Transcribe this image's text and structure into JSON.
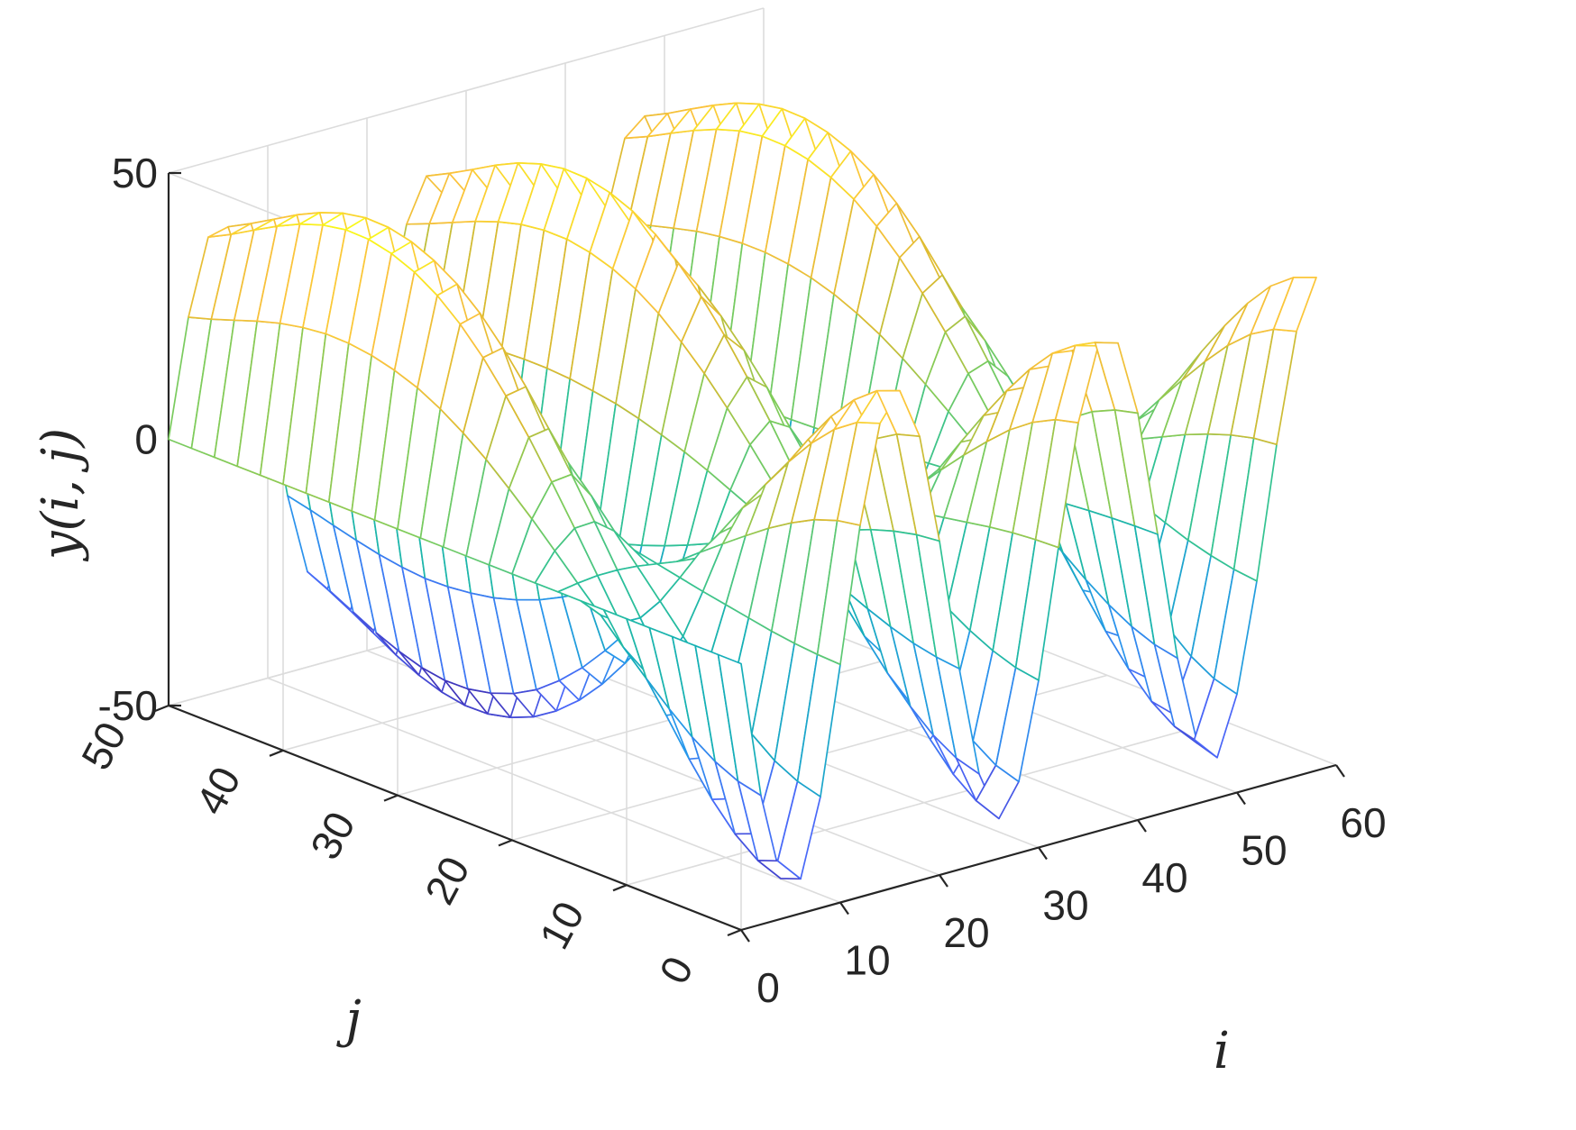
{
  "chart_data": {
    "type": "surface",
    "title": "",
    "xlabel": "i",
    "ylabel": "j",
    "zlabel": "y(i, j)",
    "xlim": [
      0,
      60
    ],
    "ylim": [
      0,
      50
    ],
    "zlim": [
      -50,
      50
    ],
    "x_ticks": [
      "0",
      "10",
      "20",
      "30",
      "40",
      "50",
      "60"
    ],
    "y_ticks": [
      "0",
      "10",
      "20",
      "30",
      "40",
      "50"
    ],
    "z_ticks": [
      "-50",
      "0",
      "50"
    ],
    "grid": true,
    "colormap": "parula",
    "colors": [
      "#3e26a8",
      "#4a67f8",
      "#2797eb",
      "#15b0b5",
      "#2fc295",
      "#81cc59",
      "#d8ba30",
      "#fbc23c",
      "#f9fb15"
    ],
    "grid_x": [
      0,
      2,
      4,
      6,
      8,
      10,
      12,
      14,
      16,
      18,
      20,
      22,
      24,
      26,
      28,
      30,
      32,
      34,
      36,
      38,
      40,
      42,
      44,
      46,
      48,
      50,
      52,
      54,
      56,
      58
    ],
    "grid_y": [
      0,
      2,
      4,
      6,
      8,
      10,
      12,
      14,
      16,
      18,
      20,
      22,
      24,
      26,
      28,
      30,
      32,
      34,
      36,
      38,
      40,
      42,
      44,
      46,
      48,
      50
    ],
    "z_values": [
      [
        0.0,
        -25.8,
        -42.4,
        -43.5,
        -29.1,
        -5.3,
        19.8,
        37.9,
        43.0,
        33.4,
        12.7,
        -12.3,
        -33.1,
        -42.5,
        -36.6,
        -18.6,
        5.3,
        27.7,
        41.1,
        40.6,
        26.4,
        2.6,
        -21.7,
        -38.7,
        -42.4,
        -31.5,
        -11.3,
        13.3,
        33.5,
        42.6
      ],
      [
        0.0,
        -24.8,
        -40.7,
        -41.8,
        -27.9,
        -5.1,
        19.0,
        36.4,
        41.3,
        32.1,
        12.2,
        -11.8,
        -31.8,
        -40.8,
        -35.2,
        -17.9,
        5.1,
        26.6,
        39.5,
        39.0,
        25.3,
        2.5,
        -20.8,
        -37.2,
        -40.7,
        -30.3,
        -10.8,
        12.8,
        32.2,
        40.9
      ],
      [
        0.0,
        -22.8,
        -37.4,
        -38.4,
        -25.7,
        -4.7,
        17.5,
        33.4,
        37.9,
        29.5,
        11.2,
        -10.9,
        -29.2,
        -37.5,
        -32.3,
        -16.4,
        4.7,
        24.4,
        36.3,
        35.8,
        23.3,
        2.3,
        -19.1,
        -34.2,
        -37.4,
        -27.8,
        -9.9,
        11.7,
        29.6,
        37.6
      ],
      [
        0.0,
        -19.9,
        -32.6,
        -33.5,
        -22.4,
        -4.1,
        15.2,
        29.1,
        33.1,
        25.7,
        9.8,
        -9.5,
        -25.5,
        -32.7,
        -28.2,
        -14.3,
        4.1,
        21.3,
        31.6,
        31.2,
        20.3,
        2.0,
        -16.7,
        -29.8,
        -32.6,
        -24.2,
        -8.7,
        10.2,
        25.8,
        32.7
      ],
      [
        0.0,
        -16.3,
        -26.7,
        -27.4,
        -18.4,
        -3.3,
        12.5,
        23.9,
        27.1,
        21.1,
        8.0,
        -7.8,
        -20.9,
        -26.8,
        -23.1,
        -11.7,
        3.3,
        17.4,
        25.9,
        25.6,
        16.6,
        1.6,
        -13.7,
        -24.4,
        -26.7,
        -19.8,
        -7.1,
        8.4,
        21.1,
        26.8
      ],
      [
        0.0,
        -12.3,
        -20.2,
        -20.7,
        -13.8,
        -2.5,
        9.4,
        18.0,
        20.5,
        15.9,
        6.0,
        -5.9,
        -15.7,
        -20.2,
        -17.4,
        -8.8,
        2.5,
        13.2,
        19.6,
        19.3,
        12.6,
        1.2,
        -10.3,
        -18.4,
        -20.2,
        -15.0,
        -5.4,
        6.3,
        15.9,
        20.3
      ],
      [
        0.0,
        -8.1,
        -13.3,
        -13.6,
        -9.1,
        -1.7,
        6.2,
        11.9,
        13.5,
        10.5,
        4.0,
        -3.9,
        -10.4,
        -13.3,
        -11.5,
        -5.8,
        1.7,
        8.7,
        12.9,
        12.7,
        8.3,
        0.8,
        -6.8,
        -12.1,
        -13.3,
        -9.9,
        -3.5,
        4.2,
        10.5,
        13.3
      ],
      [
        0.0,
        -3.7,
        -6.2,
        -6.3,
        -4.2,
        -0.8,
        2.9,
        5.5,
        6.3,
        4.9,
        1.9,
        -1.8,
        -4.8,
        -6.2,
        -5.3,
        -2.7,
        0.8,
        4.0,
        6.0,
        5.9,
        3.9,
        0.4,
        -3.2,
        -5.6,
        -6.2,
        -4.6,
        -1.6,
        1.9,
        4.9,
        6.2
      ],
      [
        0.0,
        0.6,
        1.0,
        1.0,
        0.7,
        0.1,
        -0.5,
        -0.9,
        -1.0,
        -0.8,
        -0.3,
        0.3,
        0.8,
        1.0,
        0.9,
        0.4,
        -0.1,
        -0.7,
        -1.0,
        -1.0,
        -0.6,
        -0.1,
        0.5,
        0.9,
        1.0,
        0.8,
        0.3,
        -0.3,
        -0.8,
        -1.0
      ],
      [
        0.0,
        5.0,
        8.2,
        8.4,
        5.6,
        1.0,
        -3.8,
        -7.3,
        -8.3,
        -6.5,
        -2.5,
        2.4,
        6.4,
        8.2,
        7.1,
        3.6,
        -1.0,
        -5.4,
        -8.0,
        -7.9,
        -5.1,
        -0.5,
        4.2,
        7.5,
        8.2,
        6.1,
        2.2,
        -2.6,
        -6.5,
        -8.2
      ],
      [
        0.0,
        9.3,
        15.2,
        15.6,
        10.5,
        1.9,
        -7.1,
        -13.6,
        -15.4,
        -12.0,
        -4.6,
        4.4,
        11.9,
        15.3,
        13.1,
        6.7,
        -1.9,
        -9.9,
        -14.8,
        -14.6,
        -9.5,
        -0.9,
        7.8,
        13.9,
        15.2,
        11.3,
        4.1,
        -4.8,
        -12.0,
        -15.3
      ],
      [
        0.0,
        13.3,
        21.9,
        22.5,
        15.0,
        2.7,
        -10.2,
        -19.6,
        -22.2,
        -17.2,
        -6.6,
        6.4,
        17.1,
        21.9,
        18.9,
        9.6,
        -2.7,
        -14.3,
        -21.2,
        -21.0,
        -13.6,
        -1.3,
        11.2,
        20.0,
        21.9,
        16.3,
        5.8,
        -6.9,
        -17.3,
        -22.0
      ],
      [
        0.0,
        17.1,
        28.0,
        28.7,
        19.2,
        3.5,
        -13.1,
        -25.0,
        -28.4,
        -22.1,
        -8.4,
        8.2,
        21.9,
        28.1,
        24.2,
        12.3,
        -3.5,
        -18.3,
        -27.2,
        -26.8,
        -17.4,
        -1.7,
        14.4,
        25.6,
        28.0,
        20.8,
        7.4,
        -8.8,
        -22.1,
        -28.2
      ],
      [
        0.0,
        20.4,
        33.5,
        34.3,
        23.0,
        4.2,
        -15.6,
        -29.9,
        -34.0,
        -26.4,
        -10.0,
        9.7,
        26.1,
        33.6,
        28.9,
        14.7,
        -4.2,
        -21.9,
        -32.5,
        -32.1,
        -20.8,
        -2.1,
        17.2,
        30.6,
        33.5,
        24.9,
        8.9,
        -10.5,
        -26.5,
        -33.7
      ],
      [
        0.0,
        23.2,
        38.1,
        39.1,
        26.2,
        4.8,
        -17.8,
        -34.0,
        -38.7,
        -30.1,
        -11.4,
        11.1,
        29.8,
        38.2,
        32.9,
        16.7,
        -4.8,
        -24.9,
        -37.0,
        -36.5,
        -23.7,
        -2.4,
        19.5,
        34.8,
        38.1,
        28.3,
        10.2,
        -12.0,
        -30.1,
        -38.3
      ],
      [
        0.0,
        25.5,
        41.8,
        42.9,
        28.7,
        5.2,
        -19.5,
        -37.4,
        -42.4,
        -33.0,
        -12.5,
        12.2,
        32.7,
        41.9,
        36.1,
        18.3,
        -5.3,
        -27.3,
        -40.6,
        -40.1,
        -26.0,
        -2.6,
        21.4,
        38.2,
        41.8,
        31.1,
        11.2,
        -13.1,
        -33.0,
        -42.0
      ],
      [
        0.0,
        27.1,
        44.5,
        45.6,
        30.6,
        5.6,
        -20.8,
        -39.8,
        -45.2,
        -35.1,
        -13.3,
        12.9,
        34.8,
        44.6,
        38.4,
        19.5,
        -5.6,
        -29.1,
        -43.2,
        -42.7,
        -27.7,
        -2.8,
        22.8,
        40.6,
        44.5,
        33.1,
        11.9,
        -14.0,
        -35.2,
        -44.7
      ],
      [
        0.0,
        28.2,
        46.3,
        47.5,
        31.8,
        5.8,
        -21.6,
        -41.4,
        -47.0,
        -36.5,
        -13.9,
        13.5,
        36.2,
        46.4,
        40.0,
        20.3,
        -5.8,
        -30.2,
        -44.9,
        -44.4,
        -28.8,
        -2.9,
        23.7,
        42.3,
        46.3,
        34.4,
        12.4,
        -14.5,
        -36.6,
        -46.5
      ],
      [
        0.0,
        28.8,
        47.3,
        48.5,
        32.5,
        5.9,
        -22.1,
        -42.3,
        -48.0,
        -37.3,
        -14.2,
        13.8,
        37.0,
        47.4,
        40.8,
        20.7,
        -5.9,
        -30.9,
        -45.9,
        -45.3,
        -29.4,
        -2.9,
        24.2,
        43.2,
        47.3,
        35.2,
        12.6,
        -14.8,
        -37.4,
        -47.5
      ],
      [
        0.0,
        28.9,
        47.4,
        48.6,
        32.6,
        5.9,
        -22.2,
        -42.4,
        -48.1,
        -37.4,
        -14.2,
        13.8,
        37.0,
        47.5,
        40.9,
        20.8,
        -5.9,
        -30.9,
        -46.0,
        -45.4,
        -29.5,
        -2.9,
        24.2,
        43.3,
        47.4,
        35.2,
        12.6,
        -14.9,
        -37.4,
        -47.6
      ],
      [
        0.0,
        28.4,
        46.6,
        47.8,
        32.0,
        5.8,
        -21.8,
        -41.7,
        -47.3,
        -36.8,
        -14.0,
        13.6,
        36.4,
        46.7,
        40.2,
        20.4,
        -5.8,
        -30.4,
        -45.2,
        -44.7,
        -29.0,
        -2.9,
        23.8,
        42.6,
        46.6,
        34.6,
        12.4,
        -14.6,
        -36.8,
        -46.8
      ],
      [
        0.0,
        27.5,
        45.1,
        46.2,
        31.0,
        5.6,
        -21.1,
        -40.3,
        -45.8,
        -35.6,
        -13.5,
        13.1,
        35.2,
        45.2,
        38.9,
        19.8,
        -5.7,
        -29.4,
        -43.7,
        -43.2,
        -28.1,
        -2.8,
        23.1,
        41.2,
        45.1,
        33.5,
        12.0,
        -14.2,
        -35.6,
        -45.3
      ],
      [
        0.0,
        26.2,
        43.0,
        44.1,
        29.5,
        5.4,
        -20.1,
        -38.5,
        -43.7,
        -34.0,
        -12.9,
        12.5,
        33.6,
        43.1,
        37.1,
        18.9,
        -5.4,
        -28.1,
        -41.7,
        -41.2,
        -26.8,
        -2.7,
        22.0,
        39.3,
        43.0,
        32.0,
        11.5,
        -13.5,
        -34.0,
        -43.2
      ],
      [
        0.0,
        24.7,
        40.6,
        41.6,
        27.9,
        5.1,
        -19.0,
        -36.3,
        -41.2,
        -32.1,
        -12.2,
        11.8,
        31.7,
        40.6,
        35.0,
        17.8,
        -5.1,
        -26.5,
        -39.3,
        -38.9,
        -25.2,
        -2.5,
        20.8,
        37.1,
        40.6,
        30.2,
        10.8,
        -12.7,
        -32.0,
        -40.7
      ],
      [
        0.0,
        23.2,
        38.1,
        39.1,
        26.2,
        4.8,
        -17.8,
        -34.1,
        -38.7,
        -30.1,
        -11.4,
        11.1,
        29.8,
        38.2,
        32.9,
        16.7,
        -4.8,
        -24.9,
        -37.0,
        -36.5,
        -23.7,
        -2.4,
        19.5,
        34.8,
        38.1,
        28.3,
        10.2,
        -12.0,
        -30.1,
        -38.3
      ],
      [
        0.0,
        21.9,
        35.9,
        36.8,
        24.7,
        4.5,
        -16.8,
        -32.1,
        -36.4,
        -28.3,
        -10.8,
        10.4,
        28.0,
        36.0,
        31.0,
        15.7,
        -4.5,
        -23.4,
        -34.8,
        -34.4,
        -22.3,
        -2.2,
        18.4,
        32.8,
        35.9,
        26.7,
        9.6,
        -11.3,
        -28.3,
        -36.0
      ]
    ]
  }
}
